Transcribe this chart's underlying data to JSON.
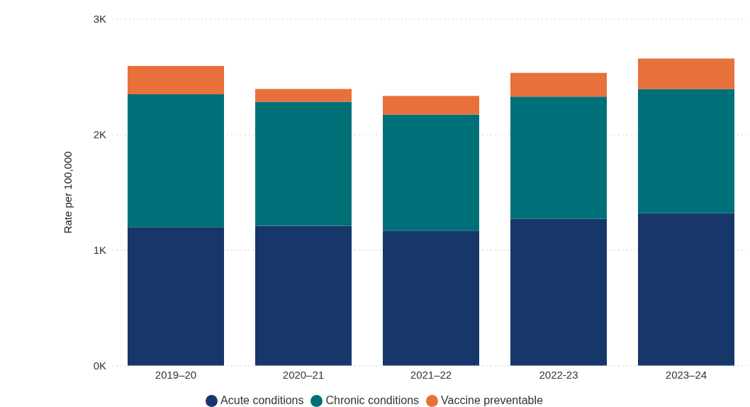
{
  "chart_data": {
    "type": "bar",
    "stacked": true,
    "ylabel": "Rate per 100,000",
    "categories": [
      "2019–20",
      "2020–21",
      "2021–22",
      "2022-23",
      "2023–24"
    ],
    "series": [
      {
        "name": "Acute conditions",
        "color": "#17376a",
        "values": [
          1200,
          1210,
          1170,
          1270,
          1320
        ]
      },
      {
        "name": "Chronic conditions",
        "color": "#007078",
        "values": [
          1150,
          1075,
          1005,
          1060,
          1075
        ]
      },
      {
        "name": "Vaccine preventable",
        "color": "#e8703a",
        "values": [
          245,
          110,
          160,
          205,
          265
        ]
      }
    ],
    "ylim": [
      0,
      3000
    ],
    "yticks": [
      {
        "value": 0,
        "label": "0K"
      },
      {
        "value": 1000,
        "label": "1K"
      },
      {
        "value": 2000,
        "label": "2K"
      },
      {
        "value": 3000,
        "label": "3K"
      }
    ],
    "grid": "y",
    "legend": "bottom"
  }
}
